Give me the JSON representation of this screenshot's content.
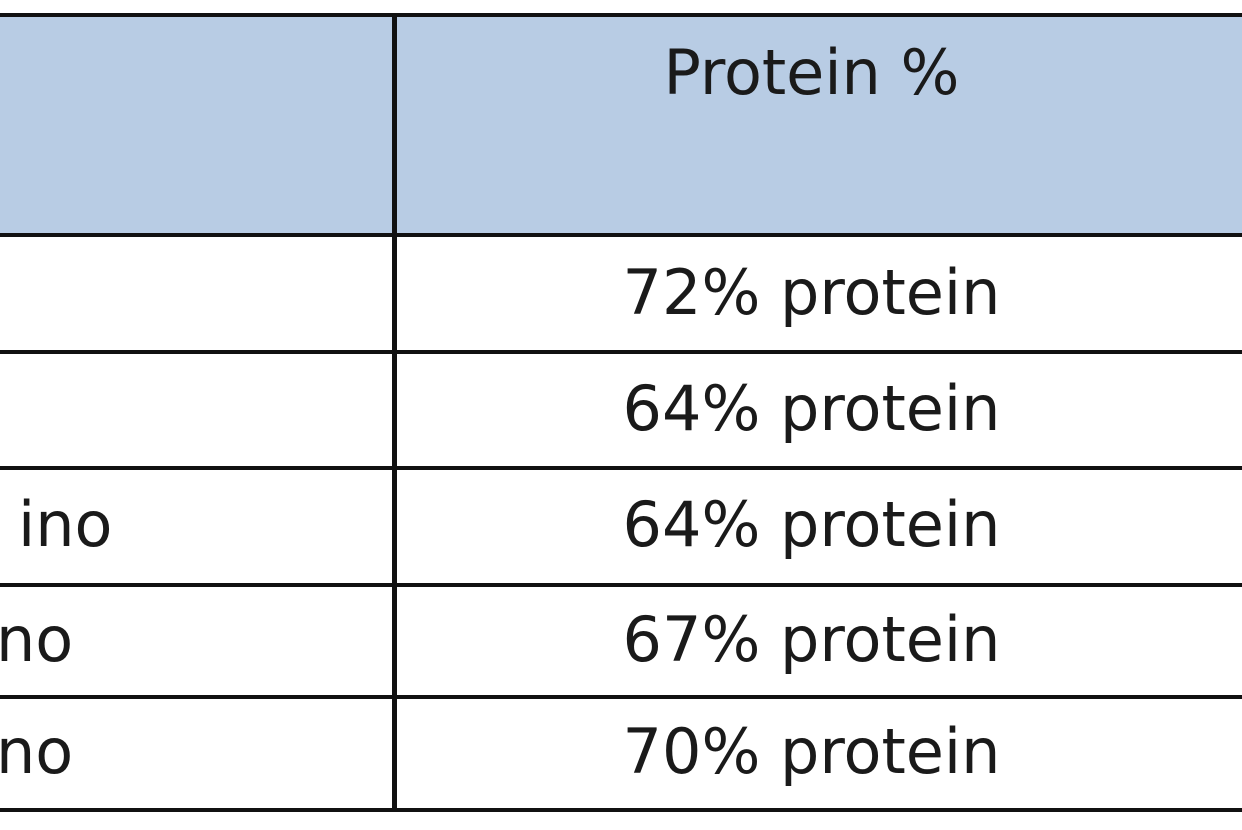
{
  "table": {
    "header": "Protein %",
    "rows": [
      {
        "value": "72% protein"
      },
      {
        "value": "64% protein"
      },
      {
        "name": "ino",
        "value": "64% protein"
      },
      {
        "name": "no",
        "value": "67% protein"
      },
      {
        "name": "no",
        "value": "70% protein"
      }
    ]
  }
}
